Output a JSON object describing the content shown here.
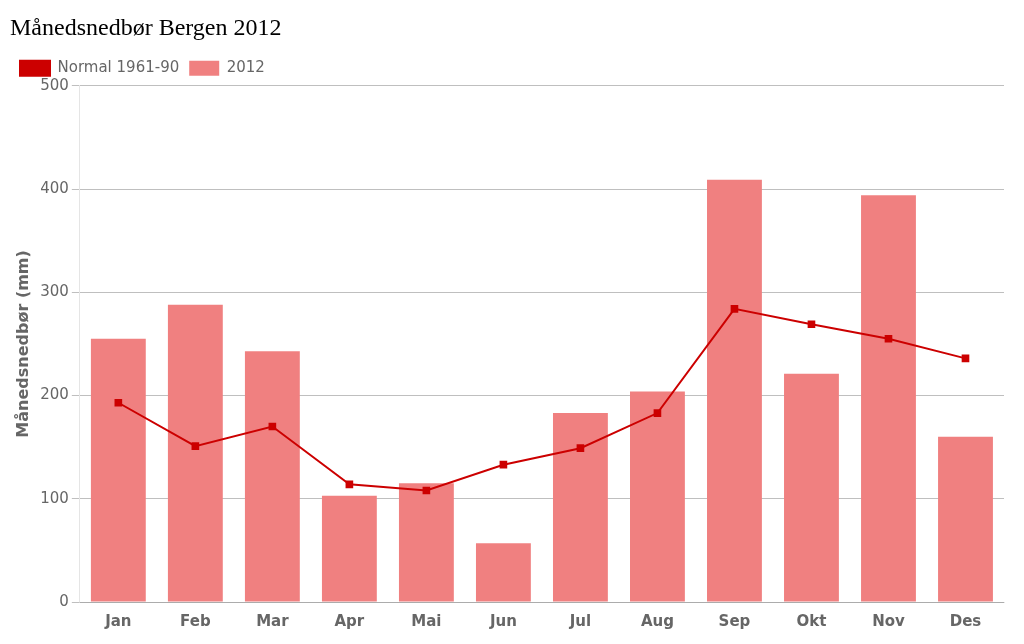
{
  "chart_data": {
    "type": "bar",
    "title": "Månedsnedbør Bergen 2012",
    "ylabel": "Månedsnedbør (mm)",
    "categories": [
      "Jan",
      "Feb",
      "Mar",
      "Apr",
      "Mai",
      "Jun",
      "Jul",
      "Aug",
      "Sep",
      "Okt",
      "Nov",
      "Des"
    ],
    "series": [
      {
        "name": "Normal 1961-90",
        "type": "line",
        "color": "#CC0000",
        "marker": "square",
        "values": [
          193,
          151,
          170,
          114,
          108,
          133,
          149,
          183,
          284,
          269,
          255,
          236
        ]
      },
      {
        "name": "2012",
        "type": "bar",
        "color": "#F08080",
        "values": [
          255,
          288,
          243,
          103,
          115,
          57,
          183,
          204,
          409,
          221,
          394,
          160
        ]
      }
    ],
    "ylim": [
      0,
      500
    ],
    "yticks": [
      0,
      100,
      200,
      300,
      400,
      500
    ],
    "grid": true,
    "legend": "upper left"
  }
}
